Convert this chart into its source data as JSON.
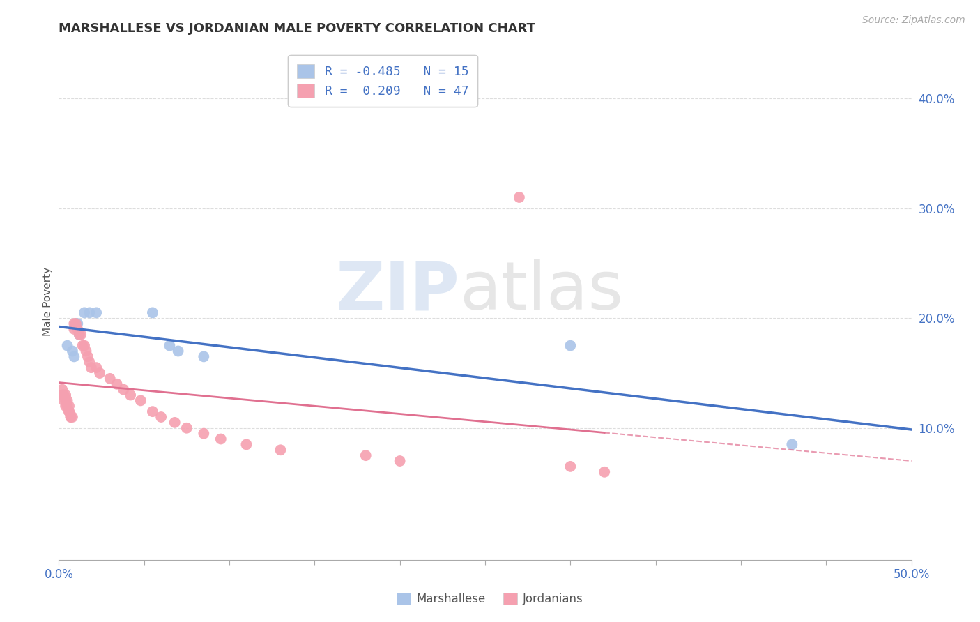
{
  "title": "MARSHALLESE VS JORDANIAN MALE POVERTY CORRELATION CHART",
  "source": "Source: ZipAtlas.com",
  "ylabel": "Male Poverty",
  "xlim": [
    0.0,
    0.5
  ],
  "ylim": [
    -0.02,
    0.45
  ],
  "plot_ylim": [
    -0.02,
    0.45
  ],
  "xticks": [
    0.0,
    0.05,
    0.1,
    0.15,
    0.2,
    0.25,
    0.3,
    0.35,
    0.4,
    0.45,
    0.5
  ],
  "xticklabel_left": "0.0%",
  "xticklabel_right": "50.0%",
  "yticks_right": [
    0.1,
    0.2,
    0.3,
    0.4
  ],
  "yticklabels_right": [
    "10.0%",
    "20.0%",
    "30.0%",
    "40.0%"
  ],
  "grid_color": "#dddddd",
  "background_color": "#ffffff",
  "marshallese_color": "#aac4e8",
  "jordanian_color": "#f5a0b0",
  "marshallese_line_color": "#4472c4",
  "jordanian_line_color": "#e07090",
  "marshallese_points": [
    [
      0.005,
      0.175
    ],
    [
      0.008,
      0.17
    ],
    [
      0.009,
      0.165
    ],
    [
      0.01,
      0.195
    ],
    [
      0.011,
      0.195
    ],
    [
      0.012,
      0.185
    ],
    [
      0.015,
      0.205
    ],
    [
      0.018,
      0.205
    ],
    [
      0.022,
      0.205
    ],
    [
      0.055,
      0.205
    ],
    [
      0.065,
      0.175
    ],
    [
      0.07,
      0.17
    ],
    [
      0.085,
      0.165
    ],
    [
      0.3,
      0.175
    ],
    [
      0.43,
      0.085
    ]
  ],
  "jordanian_points": [
    [
      0.002,
      0.135
    ],
    [
      0.002,
      0.13
    ],
    [
      0.003,
      0.13
    ],
    [
      0.003,
      0.125
    ],
    [
      0.004,
      0.13
    ],
    [
      0.004,
      0.125
    ],
    [
      0.004,
      0.12
    ],
    [
      0.005,
      0.125
    ],
    [
      0.005,
      0.12
    ],
    [
      0.006,
      0.12
    ],
    [
      0.006,
      0.115
    ],
    [
      0.006,
      0.115
    ],
    [
      0.007,
      0.11
    ],
    [
      0.007,
      0.11
    ],
    [
      0.008,
      0.11
    ],
    [
      0.009,
      0.195
    ],
    [
      0.009,
      0.19
    ],
    [
      0.01,
      0.195
    ],
    [
      0.011,
      0.19
    ],
    [
      0.012,
      0.185
    ],
    [
      0.013,
      0.185
    ],
    [
      0.014,
      0.175
    ],
    [
      0.015,
      0.175
    ],
    [
      0.016,
      0.17
    ],
    [
      0.017,
      0.165
    ],
    [
      0.018,
      0.16
    ],
    [
      0.019,
      0.155
    ],
    [
      0.022,
      0.155
    ],
    [
      0.024,
      0.15
    ],
    [
      0.03,
      0.145
    ],
    [
      0.034,
      0.14
    ],
    [
      0.038,
      0.135
    ],
    [
      0.042,
      0.13
    ],
    [
      0.048,
      0.125
    ],
    [
      0.055,
      0.115
    ],
    [
      0.06,
      0.11
    ],
    [
      0.068,
      0.105
    ],
    [
      0.075,
      0.1
    ],
    [
      0.085,
      0.095
    ],
    [
      0.095,
      0.09
    ],
    [
      0.11,
      0.085
    ],
    [
      0.13,
      0.08
    ],
    [
      0.18,
      0.075
    ],
    [
      0.2,
      0.07
    ],
    [
      0.27,
      0.31
    ],
    [
      0.3,
      0.065
    ],
    [
      0.32,
      0.06
    ]
  ]
}
